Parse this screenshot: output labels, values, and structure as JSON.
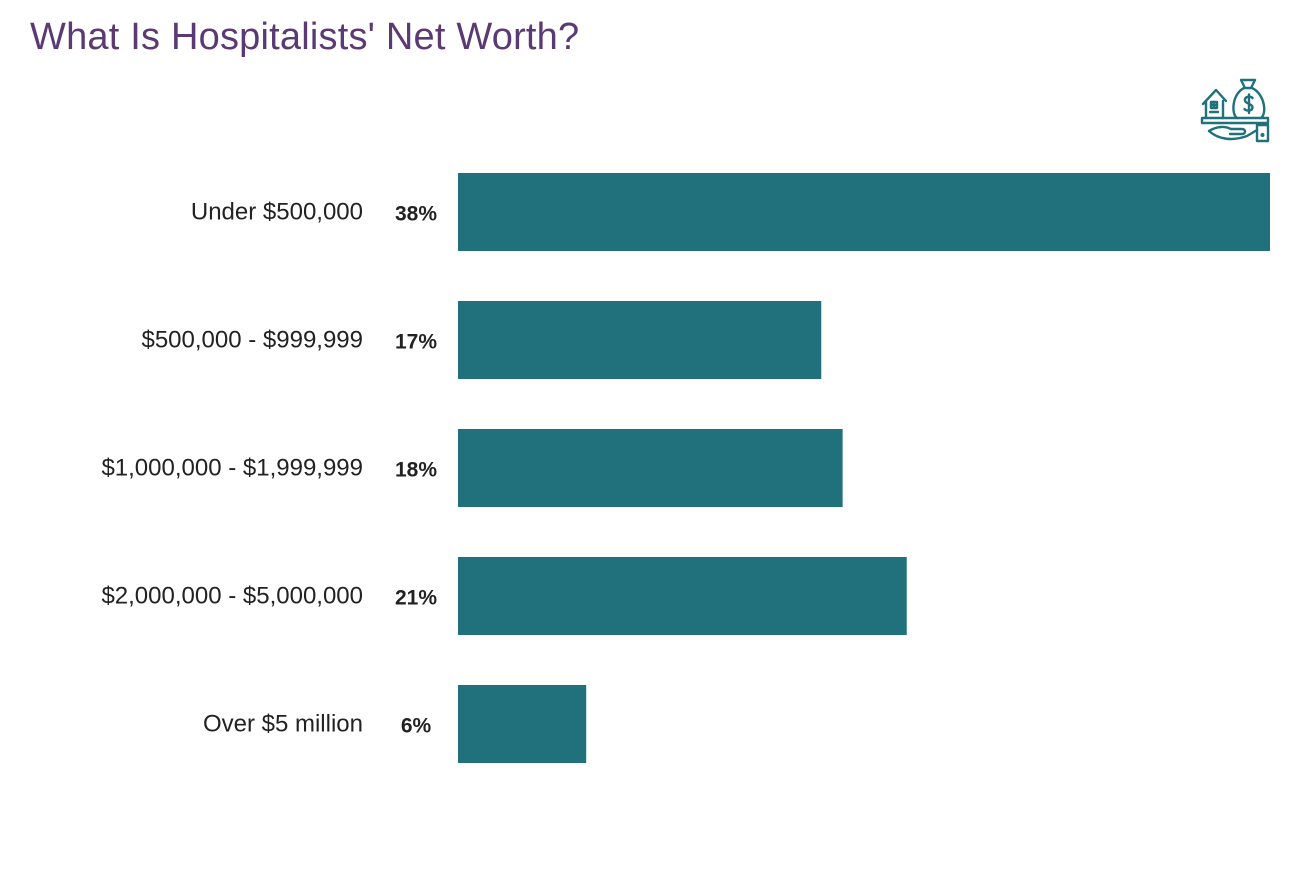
{
  "title": "What Is Hospitalists' Net Worth?",
  "icon": "house-money-bag-hand-icon",
  "colors": {
    "title": "#5b3a74",
    "bar": "#20717c",
    "text": "#222222",
    "icon": "#20717c"
  },
  "chart_data": {
    "type": "bar",
    "orientation": "horizontal",
    "title": "What Is Hospitalists' Net Worth?",
    "xlabel": "",
    "ylabel": "",
    "categories": [
      "Under $500,000",
      "$500,000 - $999,999",
      "$1,000,000 - $1,999,999",
      "$2,000,000 - $5,000,000",
      "Over $5 million"
    ],
    "values": [
      38,
      17,
      18,
      21,
      6
    ],
    "value_labels": [
      "38%",
      "17%",
      "18%",
      "21%",
      "6%"
    ],
    "unit": "%",
    "xlim": [
      0,
      38
    ],
    "grid": false,
    "legend": "none"
  }
}
